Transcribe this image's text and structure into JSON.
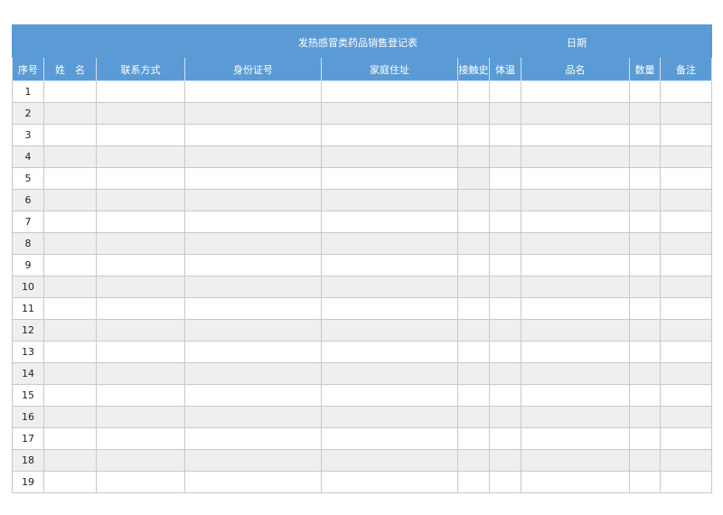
{
  "title": "发热感冒类药品销售登记表",
  "date_label": "日期",
  "columns": [
    "序号",
    "姓　名",
    "联系方式",
    "身份证号",
    "家庭住址",
    "接触史",
    "体温",
    "品名",
    "数量",
    "备注"
  ],
  "rows": [
    "1",
    "2",
    "3",
    "4",
    "5",
    "6",
    "7",
    "8",
    "9",
    "10",
    "11",
    "12",
    "13",
    "14",
    "15",
    "16",
    "17",
    "18",
    "19"
  ],
  "colors": {
    "header_bg": "#5b9bd5",
    "header_text": "#ffffff",
    "stripe": "#efefef",
    "grid": "#c8c8c8"
  }
}
